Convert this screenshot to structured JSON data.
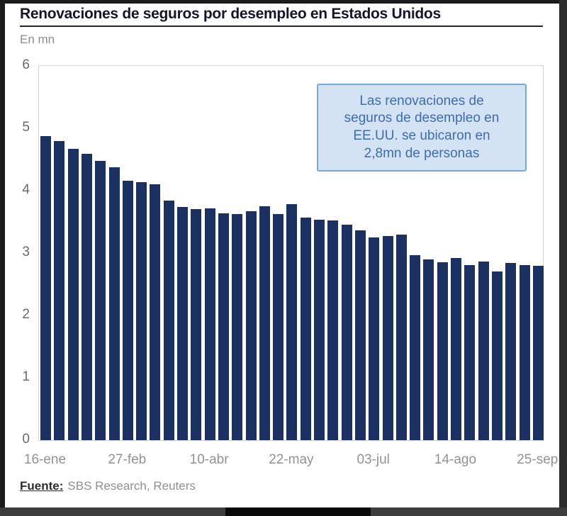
{
  "header": {
    "title": "Renovaciones de seguros por desempleo en Estados Unidos",
    "units_label": "En mn"
  },
  "annotation": {
    "lines": [
      "Las renovaciones de",
      "seguros de desempleo en",
      "EE.UU. se ubicaron en",
      "2,8mn de personas"
    ]
  },
  "footer": {
    "source_label": "Fuente:",
    "source_text": "SBS Research, Reuters"
  },
  "chart_data": {
    "type": "bar",
    "title": "Renovaciones de seguros por desempleo en Estados Unidos",
    "ylabel": "En mn",
    "xlabel": "",
    "ylim": [
      0,
      6
    ],
    "y_ticks": [
      6,
      5,
      4,
      3,
      2,
      1,
      0
    ],
    "grid": false,
    "legend": "none",
    "bar_color": "#1b3161",
    "x_tick_labels": [
      "16-ene",
      "27-feb",
      "10-abr",
      "22-may",
      "03-jul",
      "14-ago",
      "25-sep"
    ],
    "x_tick_bar_indices": [
      0,
      6,
      12,
      18,
      24,
      30,
      36
    ],
    "values": [
      4.87,
      4.79,
      4.67,
      4.59,
      4.48,
      4.37,
      4.16,
      4.14,
      4.1,
      3.84,
      3.74,
      3.71,
      3.72,
      3.64,
      3.62,
      3.67,
      3.75,
      3.63,
      3.78,
      3.57,
      3.53,
      3.52,
      3.46,
      3.36,
      3.25,
      3.27,
      3.3,
      2.97,
      2.9,
      2.85,
      2.92,
      2.81,
      2.86,
      2.71,
      2.84,
      2.81,
      2.8
    ],
    "annotation": "Las renovaciones de seguros de desempleo en EE.UU. se ubicaron en 2,8mn de personas"
  }
}
